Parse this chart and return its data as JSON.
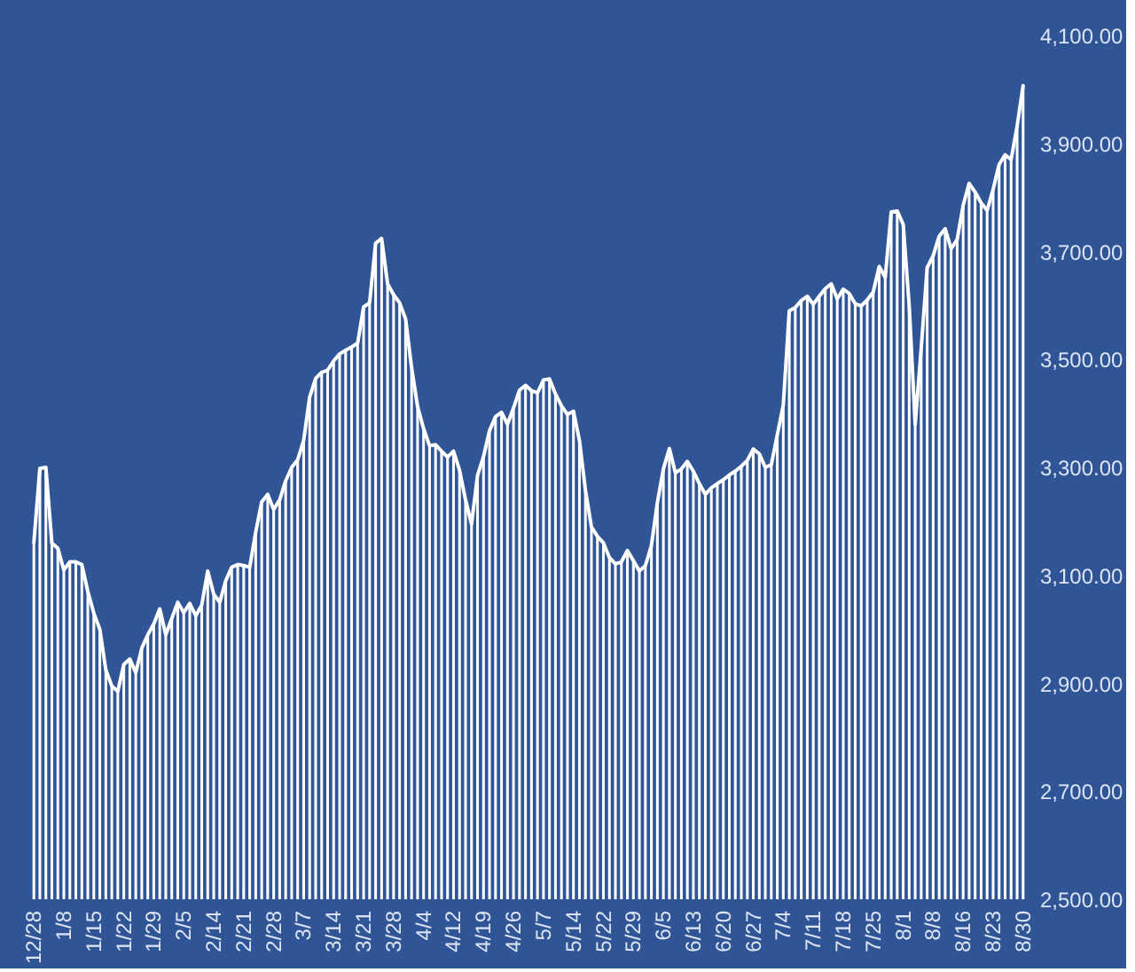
{
  "chart_data": {
    "type": "line",
    "categories": [
      "12/28",
      null,
      null,
      null,
      null,
      "1/8",
      null,
      null,
      null,
      null,
      "1/15",
      null,
      null,
      null,
      null,
      "1/22",
      null,
      null,
      null,
      null,
      "1/29",
      null,
      null,
      null,
      null,
      "2/5",
      null,
      null,
      null,
      null,
      "2/14",
      null,
      null,
      null,
      null,
      "2/21",
      null,
      null,
      null,
      null,
      "2/28",
      null,
      null,
      null,
      null,
      "3/7",
      null,
      null,
      null,
      null,
      "3/14",
      null,
      null,
      null,
      null,
      "3/21",
      null,
      null,
      null,
      null,
      "3/28",
      null,
      null,
      null,
      null,
      "4/4",
      null,
      null,
      null,
      null,
      "4/12",
      null,
      null,
      null,
      null,
      "4/19",
      null,
      null,
      null,
      null,
      "4/26",
      null,
      null,
      null,
      null,
      "5/7",
      null,
      null,
      null,
      null,
      "5/14",
      null,
      null,
      null,
      null,
      "5/22",
      null,
      null,
      null,
      null,
      "5/29",
      null,
      null,
      null,
      null,
      "6/5",
      null,
      null,
      null,
      null,
      "6/13",
      null,
      null,
      null,
      null,
      "6/20",
      null,
      null,
      null,
      null,
      "6/27",
      null,
      null,
      null,
      null,
      "7/4",
      null,
      null,
      null,
      null,
      "7/11",
      null,
      null,
      null,
      null,
      "7/18",
      null,
      null,
      null,
      null,
      "7/25",
      null,
      null,
      null,
      null,
      "8/1",
      null,
      null,
      null,
      null,
      "8/8",
      null,
      null,
      null,
      null,
      "8/16",
      null,
      null,
      null,
      null,
      "8/23",
      null,
      null,
      null,
      null,
      "8/30"
    ],
    "series": [
      {
        "type": "bar",
        "color": "#ffffff",
        "values": [
          3161,
          3298,
          3300,
          3160,
          3150,
          3110,
          3125,
          3125,
          3120,
          3070,
          3030,
          3000,
          2925,
          2895,
          2885,
          2935,
          2945,
          2920,
          2965,
          2990,
          3010,
          3038,
          2990,
          3020,
          3050,
          3031,
          3048,
          3025,
          3045,
          3108,
          3065,
          3050,
          3090,
          3115,
          3120,
          3118,
          3115,
          3180,
          3236,
          3250,
          3222,
          3240,
          3275,
          3300,
          3314,
          3350,
          3430,
          3465,
          3476,
          3480,
          3497,
          3510,
          3517,
          3523,
          3530,
          3597,
          3605,
          3715,
          3724,
          3640,
          3620,
          3605,
          3575,
          3485,
          3413,
          3372,
          3340,
          3342,
          3330,
          3319,
          3330,
          3295,
          3240,
          3195,
          3285,
          3320,
          3368,
          3394,
          3402,
          3380,
          3410,
          3443,
          3452,
          3442,
          3438,
          3462,
          3464,
          3436,
          3414,
          3398,
          3404,
          3350,
          3258,
          3190,
          3172,
          3160,
          3133,
          3121,
          3125,
          3146,
          3127,
          3108,
          3118,
          3155,
          3235,
          3297,
          3335,
          3290,
          3297,
          3311,
          3293,
          3270,
          3250,
          3262,
          3270,
          3277,
          3286,
          3293,
          3302,
          3313,
          3334,
          3325,
          3300,
          3305,
          3360,
          3415,
          3590,
          3596,
          3609,
          3617,
          3602,
          3617,
          3631,
          3640,
          3612,
          3630,
          3622,
          3603,
          3599,
          3610,
          3625,
          3672,
          3652,
          3773,
          3775,
          3750,
          3600,
          3380,
          3520,
          3670,
          3692,
          3728,
          3742,
          3705,
          3722,
          3785,
          3826,
          3810,
          3790,
          3776,
          3815,
          3861,
          3879,
          3870,
          3932,
          4007
        ]
      },
      {
        "color": "#ffffff",
        "values": [
          3161,
          3298,
          3300,
          3160,
          3150,
          3110,
          3125,
          3125,
          3120,
          3070,
          3030,
          3000,
          2925,
          2895,
          2885,
          2935,
          2945,
          2920,
          2965,
          2990,
          3010,
          3038,
          2990,
          3020,
          3050,
          3031,
          3048,
          3025,
          3045,
          3108,
          3065,
          3050,
          3090,
          3115,
          3120,
          3118,
          3115,
          3180,
          3236,
          3250,
          3222,
          3240,
          3275,
          3300,
          3314,
          3350,
          3430,
          3465,
          3476,
          3480,
          3497,
          3510,
          3517,
          3523,
          3530,
          3597,
          3605,
          3715,
          3724,
          3640,
          3620,
          3605,
          3575,
          3485,
          3413,
          3372,
          3340,
          3342,
          3330,
          3319,
          3330,
          3295,
          3240,
          3195,
          3285,
          3320,
          3368,
          3394,
          3402,
          3380,
          3410,
          3443,
          3452,
          3442,
          3438,
          3462,
          3464,
          3436,
          3414,
          3398,
          3404,
          3350,
          3258,
          3190,
          3172,
          3160,
          3133,
          3121,
          3125,
          3146,
          3127,
          3108,
          3118,
          3155,
          3235,
          3297,
          3335,
          3290,
          3297,
          3311,
          3293,
          3270,
          3250,
          3262,
          3270,
          3277,
          3286,
          3293,
          3302,
          3313,
          3334,
          3325,
          3300,
          3305,
          3360,
          3415,
          3590,
          3596,
          3609,
          3617,
          3602,
          3617,
          3631,
          3640,
          3612,
          3630,
          3622,
          3603,
          3599,
          3610,
          3625,
          3672,
          3652,
          3773,
          3775,
          3750,
          3600,
          3380,
          3520,
          3670,
          3692,
          3728,
          3742,
          3705,
          3722,
          3785,
          3826,
          3810,
          3790,
          3776,
          3815,
          3861,
          3879,
          3870,
          3932,
          4007
        ]
      }
    ],
    "ylim": [
      2500,
      4100
    ],
    "yticks": [
      {
        "value": 2500,
        "label": "2,500.00"
      },
      {
        "value": 2700,
        "label": "2,700.00"
      },
      {
        "value": 2900,
        "label": "2,900.00"
      },
      {
        "value": 3100,
        "label": "3,100.00"
      },
      {
        "value": 3300,
        "label": "3,300.00"
      },
      {
        "value": 3500,
        "label": "3,500.00"
      },
      {
        "value": 3700,
        "label": "3,700.00"
      },
      {
        "value": 3900,
        "label": "3,900.00"
      },
      {
        "value": 4100,
        "label": "4,100.00"
      }
    ],
    "grid": false,
    "marker": "none",
    "line_style": "solid"
  }
}
